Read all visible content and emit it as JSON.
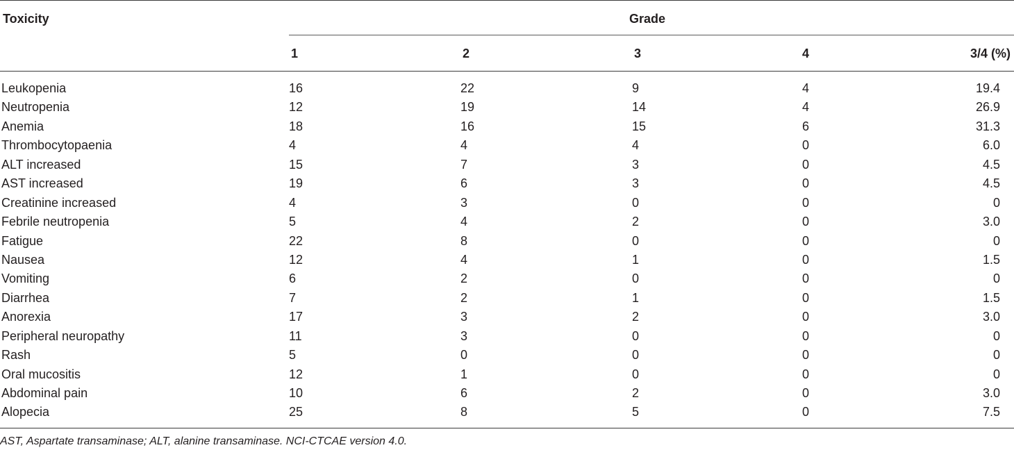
{
  "header": {
    "toxicity": "Toxicity",
    "grade": "Grade",
    "columns": [
      "1",
      "2",
      "3",
      "4",
      "3/4 (%)"
    ]
  },
  "rows": [
    {
      "name": "Leukopenia",
      "g1": "16",
      "g2": "22",
      "g3": "9",
      "g4": "4",
      "pct": "19.4"
    },
    {
      "name": "Neutropenia",
      "g1": "12",
      "g2": "19",
      "g3": "14",
      "g4": "4",
      "pct": "26.9"
    },
    {
      "name": "Anemia",
      "g1": "18",
      "g2": "16",
      "g3": "15",
      "g4": "6",
      "pct": "31.3"
    },
    {
      "name": "Thrombocytopaenia",
      "g1": "4",
      "g2": "4",
      "g3": "4",
      "g4": "0",
      "pct": "6.0"
    },
    {
      "name": "ALT increased",
      "g1": "15",
      "g2": "7",
      "g3": "3",
      "g4": "0",
      "pct": "4.5"
    },
    {
      "name": "AST increased",
      "g1": "19",
      "g2": "6",
      "g3": "3",
      "g4": "0",
      "pct": "4.5"
    },
    {
      "name": "Creatinine increased",
      "g1": "4",
      "g2": "3",
      "g3": "0",
      "g4": "0",
      "pct": "0"
    },
    {
      "name": "Febrile neutropenia",
      "g1": "5",
      "g2": "4",
      "g3": "2",
      "g4": "0",
      "pct": "3.0"
    },
    {
      "name": "Fatigue",
      "g1": "22",
      "g2": "8",
      "g3": "0",
      "g4": "0",
      "pct": "0"
    },
    {
      "name": "Nausea",
      "g1": "12",
      "g2": "4",
      "g3": "1",
      "g4": "0",
      "pct": "1.5"
    },
    {
      "name": "Vomiting",
      "g1": "6",
      "g2": "2",
      "g3": "0",
      "g4": "0",
      "pct": "0"
    },
    {
      "name": "Diarrhea",
      "g1": "7",
      "g2": "2",
      "g3": "1",
      "g4": "0",
      "pct": "1.5"
    },
    {
      "name": "Anorexia",
      "g1": "17",
      "g2": "3",
      "g3": "2",
      "g4": "0",
      "pct": "3.0"
    },
    {
      "name": "Peripheral neuropathy",
      "g1": "11",
      "g2": "3",
      "g3": "0",
      "g4": "0",
      "pct": "0"
    },
    {
      "name": "Rash",
      "g1": "5",
      "g2": "0",
      "g3": "0",
      "g4": "0",
      "pct": "0"
    },
    {
      "name": "Oral mucositis",
      "g1": "12",
      "g2": "1",
      "g3": "0",
      "g4": "0",
      "pct": "0"
    },
    {
      "name": "Abdominal pain",
      "g1": "10",
      "g2": "6",
      "g3": "2",
      "g4": "0",
      "pct": "3.0"
    },
    {
      "name": "Alopecia",
      "g1": "25",
      "g2": "8",
      "g3": "5",
      "g4": "0",
      "pct": "7.5"
    }
  ],
  "footnote": "AST, Aspartate transaminase; ALT, alanine transaminase. NCI-CTCAE version 4.0."
}
